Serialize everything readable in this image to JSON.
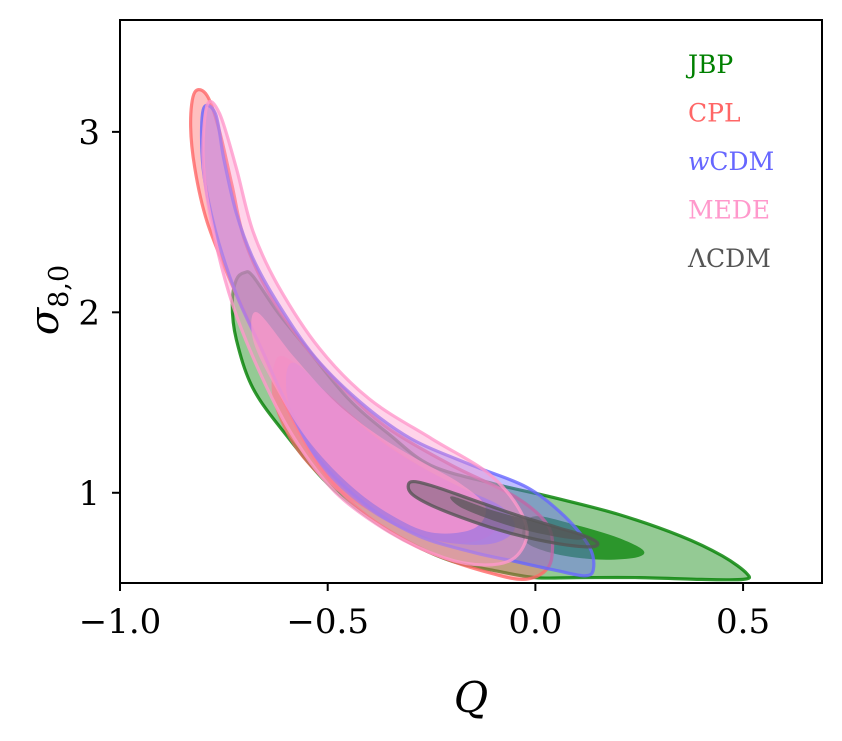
{
  "chart_data": {
    "type": "contour",
    "xlabel": "Q",
    "ylabel_symbol": "σ",
    "ylabel_subscript": "8,0",
    "xlim": [
      -1.0,
      0.69
    ],
    "ylim": [
      0.5,
      3.62
    ],
    "x_ticks": [
      -1.0,
      -0.5,
      0.0,
      0.5
    ],
    "x_tick_labels": [
      "−1.0",
      "−0.5",
      "0.0",
      "0.5"
    ],
    "y_ticks": [
      1,
      2,
      3
    ],
    "y_tick_labels": [
      "1",
      "2",
      "3"
    ],
    "legend_position": "top-right",
    "series": [
      {
        "name": "JBP",
        "color": "#008000",
        "outer": [
          [
            -0.7,
            2.22
          ],
          [
            -0.68,
            2.2
          ],
          [
            -0.62,
            2.0
          ],
          [
            -0.55,
            1.8
          ],
          [
            -0.45,
            1.52
          ],
          [
            -0.35,
            1.32
          ],
          [
            -0.25,
            1.15
          ],
          [
            -0.1,
            1.05
          ],
          [
            0.05,
            0.97
          ],
          [
            0.2,
            0.88
          ],
          [
            0.35,
            0.76
          ],
          [
            0.45,
            0.65
          ],
          [
            0.51,
            0.55
          ],
          [
            0.5,
            0.52
          ],
          [
            0.4,
            0.52
          ],
          [
            0.25,
            0.53
          ],
          [
            0.1,
            0.53
          ],
          [
            0.0,
            0.53
          ],
          [
            -0.1,
            0.57
          ],
          [
            -0.2,
            0.62
          ],
          [
            -0.3,
            0.72
          ],
          [
            -0.4,
            0.86
          ],
          [
            -0.5,
            1.05
          ],
          [
            -0.6,
            1.32
          ],
          [
            -0.68,
            1.58
          ],
          [
            -0.72,
            1.85
          ],
          [
            -0.73,
            2.05
          ],
          [
            -0.72,
            2.18
          ]
        ],
        "inner": [
          [
            0.0,
            0.87
          ],
          [
            0.1,
            0.82
          ],
          [
            0.2,
            0.75
          ],
          [
            0.26,
            0.68
          ],
          [
            0.24,
            0.64
          ],
          [
            0.15,
            0.63
          ],
          [
            0.05,
            0.66
          ],
          [
            -0.02,
            0.72
          ],
          [
            -0.03,
            0.8
          ]
        ]
      },
      {
        "name": "CPL",
        "color": "#ff6666",
        "outer": [
          [
            -0.82,
            3.22
          ],
          [
            -0.79,
            3.2
          ],
          [
            -0.76,
            3.0
          ],
          [
            -0.73,
            2.7
          ],
          [
            -0.7,
            2.4
          ],
          [
            -0.64,
            2.1
          ],
          [
            -0.55,
            1.8
          ],
          [
            -0.45,
            1.55
          ],
          [
            -0.35,
            1.35
          ],
          [
            -0.2,
            1.15
          ],
          [
            -0.05,
            0.98
          ],
          [
            0.03,
            0.82
          ],
          [
            0.04,
            0.65
          ],
          [
            0.02,
            0.56
          ],
          [
            -0.03,
            0.52
          ],
          [
            -0.1,
            0.55
          ],
          [
            -0.2,
            0.62
          ],
          [
            -0.3,
            0.72
          ],
          [
            -0.42,
            0.9
          ],
          [
            -0.52,
            1.15
          ],
          [
            -0.6,
            1.48
          ],
          [
            -0.66,
            1.8
          ],
          [
            -0.73,
            2.15
          ],
          [
            -0.79,
            2.5
          ],
          [
            -0.82,
            2.8
          ],
          [
            -0.83,
            3.05
          ]
        ],
        "inner": [
          [
            -0.6,
            1.75
          ],
          [
            -0.5,
            1.55
          ],
          [
            -0.4,
            1.35
          ],
          [
            -0.3,
            1.18
          ],
          [
            -0.2,
            1.05
          ],
          [
            -0.12,
            0.95
          ],
          [
            -0.08,
            0.85
          ],
          [
            -0.12,
            0.75
          ],
          [
            -0.2,
            0.72
          ],
          [
            -0.3,
            0.78
          ],
          [
            -0.4,
            0.9
          ],
          [
            -0.5,
            1.05
          ],
          [
            -0.58,
            1.25
          ],
          [
            -0.63,
            1.5
          ],
          [
            -0.63,
            1.7
          ]
        ]
      },
      {
        "name": "wCDM",
        "color": "#6666ff",
        "outer": [
          [
            -0.8,
            3.12
          ],
          [
            -0.77,
            3.1
          ],
          [
            -0.75,
            2.85
          ],
          [
            -0.72,
            2.55
          ],
          [
            -0.68,
            2.3
          ],
          [
            -0.62,
            2.05
          ],
          [
            -0.53,
            1.75
          ],
          [
            -0.42,
            1.5
          ],
          [
            -0.3,
            1.3
          ],
          [
            -0.15,
            1.15
          ],
          [
            -0.02,
            1.03
          ],
          [
            0.07,
            0.87
          ],
          [
            0.13,
            0.7
          ],
          [
            0.14,
            0.58
          ],
          [
            0.12,
            0.54
          ],
          [
            0.05,
            0.57
          ],
          [
            -0.05,
            0.62
          ],
          [
            -0.15,
            0.67
          ],
          [
            -0.28,
            0.76
          ],
          [
            -0.4,
            0.92
          ],
          [
            -0.52,
            1.18
          ],
          [
            -0.6,
            1.5
          ],
          [
            -0.66,
            1.8
          ],
          [
            -0.72,
            2.1
          ],
          [
            -0.77,
            2.45
          ],
          [
            -0.8,
            2.8
          ]
        ],
        "inner": [
          [
            -0.58,
            1.72
          ],
          [
            -0.48,
            1.5
          ],
          [
            -0.38,
            1.3
          ],
          [
            -0.28,
            1.15
          ],
          [
            -0.18,
            1.03
          ],
          [
            -0.08,
            0.92
          ],
          [
            -0.05,
            0.8
          ],
          [
            -0.1,
            0.72
          ],
          [
            -0.2,
            0.72
          ],
          [
            -0.3,
            0.78
          ],
          [
            -0.4,
            0.9
          ],
          [
            -0.5,
            1.1
          ],
          [
            -0.57,
            1.35
          ],
          [
            -0.6,
            1.58
          ]
        ]
      },
      {
        "name": "MEDE",
        "color": "#ff99cc",
        "outer": [
          [
            -0.79,
            3.15
          ],
          [
            -0.76,
            3.1
          ],
          [
            -0.72,
            2.8
          ],
          [
            -0.68,
            2.45
          ],
          [
            -0.62,
            2.15
          ],
          [
            -0.52,
            1.8
          ],
          [
            -0.4,
            1.52
          ],
          [
            -0.25,
            1.3
          ],
          [
            -0.12,
            1.12
          ],
          [
            -0.05,
            0.95
          ],
          [
            -0.02,
            0.78
          ],
          [
            -0.05,
            0.64
          ],
          [
            -0.12,
            0.6
          ],
          [
            -0.22,
            0.64
          ],
          [
            -0.35,
            0.78
          ],
          [
            -0.48,
            1.0
          ],
          [
            -0.58,
            1.3
          ],
          [
            -0.66,
            1.65
          ],
          [
            -0.73,
            2.05
          ],
          [
            -0.78,
            2.5
          ],
          [
            -0.8,
            2.85
          ]
        ],
        "inner": [
          [
            -0.67,
            2.0
          ],
          [
            -0.58,
            1.75
          ],
          [
            -0.48,
            1.5
          ],
          [
            -0.38,
            1.32
          ],
          [
            -0.28,
            1.18
          ],
          [
            -0.18,
            1.05
          ],
          [
            -0.12,
            0.92
          ],
          [
            -0.15,
            0.8
          ],
          [
            -0.25,
            0.78
          ],
          [
            -0.35,
            0.88
          ],
          [
            -0.45,
            1.05
          ],
          [
            -0.55,
            1.3
          ],
          [
            -0.63,
            1.6
          ],
          [
            -0.68,
            1.85
          ]
        ]
      },
      {
        "name": "ΛCDM",
        "color": "#555555",
        "outer": [
          [
            -0.3,
            1.06
          ],
          [
            -0.25,
            1.04
          ],
          [
            -0.15,
            0.96
          ],
          [
            -0.05,
            0.88
          ],
          [
            0.05,
            0.81
          ],
          [
            0.12,
            0.76
          ],
          [
            0.15,
            0.72
          ],
          [
            0.13,
            0.7
          ],
          [
            0.05,
            0.72
          ],
          [
            -0.05,
            0.77
          ],
          [
            -0.15,
            0.84
          ],
          [
            -0.25,
            0.93
          ],
          [
            -0.3,
            1.0
          ]
        ],
        "inner": [
          [
            -0.2,
            0.98
          ],
          [
            -0.1,
            0.9
          ],
          [
            0.0,
            0.84
          ],
          [
            0.08,
            0.79
          ],
          [
            0.12,
            0.76
          ],
          [
            0.1,
            0.74
          ],
          [
            0.02,
            0.77
          ],
          [
            -0.08,
            0.83
          ],
          [
            -0.18,
            0.92
          ]
        ]
      }
    ]
  }
}
